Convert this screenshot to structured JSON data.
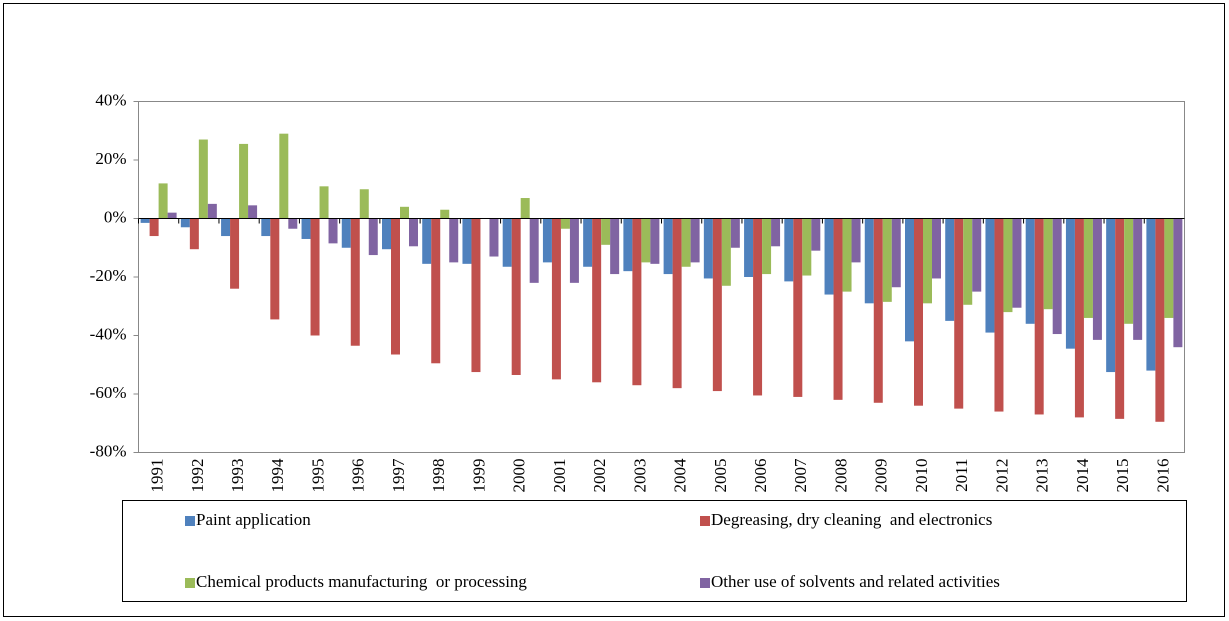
{
  "chart_data": {
    "type": "bar",
    "categories": [
      "1991",
      "1992",
      "1993",
      "1994",
      "1995",
      "1996",
      "1997",
      "1998",
      "1999",
      "2000",
      "2001",
      "2002",
      "2003",
      "2004",
      "2005",
      "2006",
      "2007",
      "2008",
      "2009",
      "2010",
      "2011",
      "2012",
      "2013",
      "2014",
      "2015",
      "2016"
    ],
    "series": [
      {
        "name": "Paint application",
        "color": "#4f81bd",
        "values": [
          -1.5,
          -3,
          -6,
          -6,
          -7,
          -10,
          -10.5,
          -15.5,
          -15.5,
          -16.5,
          -15,
          -16.5,
          -18,
          -19,
          -20.5,
          -20,
          -21.5,
          -26,
          -29,
          -42,
          -35,
          -39,
          -36,
          -44.5,
          -52.5,
          -52
        ]
      },
      {
        "name": "Degreasing, dry cleaning  and electronics",
        "color": "#c0504d",
        "values": [
          -6,
          -10.5,
          -24,
          -34.5,
          -40,
          -43.5,
          -46.5,
          -49.5,
          -52.5,
          -53.5,
          -55,
          -56,
          -57,
          -58,
          -59,
          -60.5,
          -61,
          -62,
          -63,
          -64,
          -65,
          -66,
          -67,
          -68,
          -68.5,
          -69.5
        ]
      },
      {
        "name": "Chemical products manufacturing  or processing",
        "color": "#9bbb59",
        "values": [
          12,
          27,
          25.5,
          29,
          11,
          10,
          4,
          3,
          0,
          7,
          -3.5,
          -9,
          -15,
          -16.5,
          -23,
          -19,
          -19.5,
          -25,
          -28.5,
          -29,
          -29.5,
          -32,
          -31,
          -34,
          -36,
          -34
        ]
      },
      {
        "name": "Other use of solvents and related activities",
        "color": "#8064a2",
        "values": [
          2,
          5,
          4.5,
          -3.5,
          -8.5,
          -12.5,
          -9.5,
          -15,
          -13,
          -22,
          -22,
          -19,
          -15.5,
          -15,
          -10,
          -9.5,
          -11,
          -15,
          -23.5,
          -20.5,
          -25,
          -30.5,
          -39.5,
          -41.5,
          -41.5,
          -44
        ]
      }
    ],
    "ylim": [
      -80,
      40
    ],
    "yticks": [
      {
        "value": -80,
        "label": "-80%"
      },
      {
        "value": -60,
        "label": "-60%"
      },
      {
        "value": -40,
        "label": "-40%"
      },
      {
        "value": -20,
        "label": "-20%"
      },
      {
        "value": 0,
        "label": "0%"
      },
      {
        "value": 20,
        "label": "20%"
      },
      {
        "value": 40,
        "label": "40%"
      }
    ],
    "legend": "bottom"
  }
}
